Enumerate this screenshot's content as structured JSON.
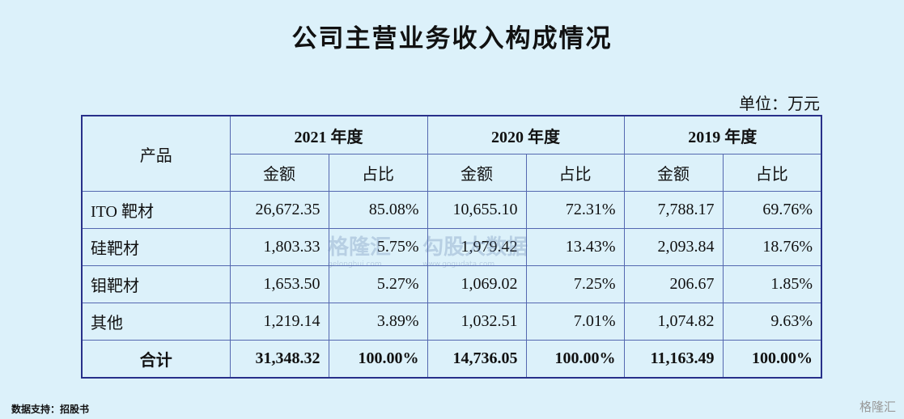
{
  "header": {
    "title": "公司主营业务收入构成情况",
    "unit": "单位：万元"
  },
  "table": {
    "product_header": "产品",
    "years": [
      "2021 年度",
      "2020 年度",
      "2019 年度"
    ],
    "subheaders": [
      "金额",
      "占比"
    ],
    "rows": [
      [
        "ITO 靶材",
        "26,672.35",
        "85.08%",
        "10,655.10",
        "72.31%",
        "7,788.17",
        "69.76%"
      ],
      [
        "硅靶材",
        "1,803.33",
        "5.75%",
        "1,979.42",
        "13.43%",
        "2,093.84",
        "18.76%"
      ],
      [
        "钼靶材",
        "1,653.50",
        "5.27%",
        "1,069.02",
        "7.25%",
        "206.67",
        "1.85%"
      ],
      [
        "其他",
        "1,219.14",
        "3.89%",
        "1,032.51",
        "7.01%",
        "1,074.82",
        "9.63%"
      ]
    ],
    "total": [
      "合计",
      "31,348.32",
      "100.00%",
      "14,736.05",
      "100.00%",
      "11,163.49",
      "100.00%"
    ]
  },
  "watermark": {
    "brand": "格隆汇",
    "site": "gelonghui.com",
    "partner": "勾股大数据",
    "partner_site": "www.gogudata.com"
  },
  "footer": {
    "source": "数据支持：招股书",
    "brand": "格隆汇"
  }
}
